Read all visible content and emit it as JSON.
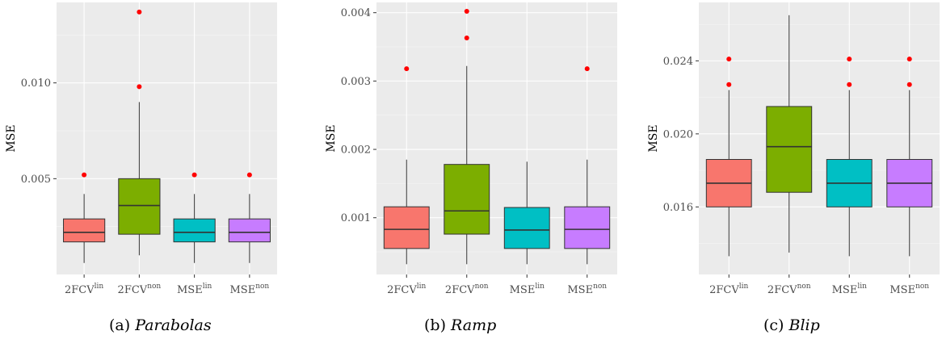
{
  "chart_data": [
    {
      "type": "boxplot",
      "caption_prefix": "(a)",
      "caption_name": "Parabolas",
      "ylabel": "MSE",
      "ylim": [
        0,
        0.0142
      ],
      "ytick_values": [
        0.005,
        0.01
      ],
      "ytick_labels": [
        "0.005",
        "0.010"
      ],
      "categories": [
        {
          "base": "2FCV",
          "sup": "lin"
        },
        {
          "base": "2FCV",
          "sup": "non"
        },
        {
          "base": "MSE",
          "sup": "lin"
        },
        {
          "base": "MSE",
          "sup": "non"
        }
      ],
      "colors": [
        "#f8766d",
        "#7cae00",
        "#00bfc4",
        "#c77cff"
      ],
      "boxes": [
        {
          "low": 0.0006,
          "q1": 0.0017,
          "median": 0.0022,
          "q3": 0.0029,
          "high": 0.0042,
          "outliers": [
            0.0052
          ]
        },
        {
          "low": 0.001,
          "q1": 0.0021,
          "median": 0.0036,
          "q3": 0.005,
          "high": 0.009,
          "outliers": [
            0.0098,
            0.0137
          ]
        },
        {
          "low": 0.0006,
          "q1": 0.0017,
          "median": 0.0022,
          "q3": 0.0029,
          "high": 0.0042,
          "outliers": [
            0.0052
          ]
        },
        {
          "low": 0.0006,
          "q1": 0.0017,
          "median": 0.0022,
          "q3": 0.0029,
          "high": 0.0042,
          "outliers": [
            0.0052
          ]
        }
      ]
    },
    {
      "type": "boxplot",
      "caption_prefix": "(b)",
      "caption_name": "Ramp",
      "ylabel": "MSE",
      "ylim": [
        0.00017,
        0.00415
      ],
      "ytick_values": [
        0.001,
        0.002,
        0.003,
        0.004
      ],
      "ytick_labels": [
        "0.001",
        "0.002",
        "0.003",
        "0.004"
      ],
      "categories": [
        {
          "base": "2FCV",
          "sup": "lin"
        },
        {
          "base": "2FCV",
          "sup": "non"
        },
        {
          "base": "MSE",
          "sup": "lin"
        },
        {
          "base": "MSE",
          "sup": "non"
        }
      ],
      "colors": [
        "#f8766d",
        "#7cae00",
        "#00bfc4",
        "#c77cff"
      ],
      "boxes": [
        {
          "low": 0.00032,
          "q1": 0.00055,
          "median": 0.00083,
          "q3": 0.00116,
          "high": 0.00185,
          "outliers": [
            0.00318
          ]
        },
        {
          "low": 0.00032,
          "q1": 0.00076,
          "median": 0.0011,
          "q3": 0.00178,
          "high": 0.00322,
          "outliers": [
            0.00363,
            0.00402
          ]
        },
        {
          "low": 0.00032,
          "q1": 0.00055,
          "median": 0.00082,
          "q3": 0.00115,
          "high": 0.00182,
          "outliers": []
        },
        {
          "low": 0.00032,
          "q1": 0.00055,
          "median": 0.00083,
          "q3": 0.00116,
          "high": 0.00185,
          "outliers": [
            0.00318
          ]
        }
      ]
    },
    {
      "type": "boxplot",
      "caption_prefix": "(c)",
      "caption_name": "Blip",
      "ylabel": "MSE",
      "ylim": [
        0.0123,
        0.0272
      ],
      "ytick_values": [
        0.016,
        0.02,
        0.024
      ],
      "ytick_labels": [
        "0.016",
        "0.020",
        "0.024"
      ],
      "categories": [
        {
          "base": "2FCV",
          "sup": "lin"
        },
        {
          "base": "2FCV",
          "sup": "non"
        },
        {
          "base": "MSE",
          "sup": "lin"
        },
        {
          "base": "MSE",
          "sup": "non"
        }
      ],
      "colors": [
        "#f8766d",
        "#7cae00",
        "#00bfc4",
        "#c77cff"
      ],
      "boxes": [
        {
          "low": 0.0133,
          "q1": 0.016,
          "median": 0.0173,
          "q3": 0.0186,
          "high": 0.0224,
          "outliers": [
            0.0227,
            0.0241
          ]
        },
        {
          "low": 0.0135,
          "q1": 0.0168,
          "median": 0.0193,
          "q3": 0.0215,
          "high": 0.0265,
          "outliers": []
        },
        {
          "low": 0.0133,
          "q1": 0.016,
          "median": 0.0173,
          "q3": 0.0186,
          "high": 0.0224,
          "outliers": [
            0.0227,
            0.0241
          ]
        },
        {
          "low": 0.0133,
          "q1": 0.016,
          "median": 0.0173,
          "q3": 0.0186,
          "high": 0.0224,
          "outliers": [
            0.0227,
            0.0241
          ]
        }
      ]
    }
  ]
}
